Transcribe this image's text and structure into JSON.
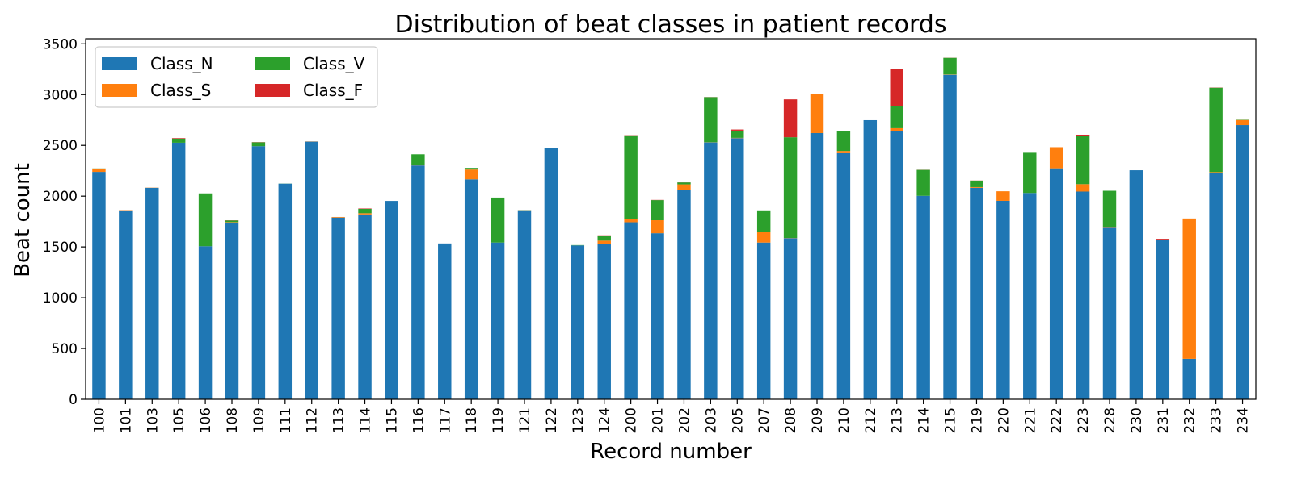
{
  "chart_data": {
    "type": "bar",
    "stacked": true,
    "title": "Distribution of beat classes in patient records",
    "xlabel": "Record number",
    "ylabel": "Beat count",
    "ylim": [
      0,
      3550
    ],
    "yticks": [
      0,
      500,
      1000,
      1500,
      2000,
      2500,
      3000,
      3500
    ],
    "grid": false,
    "legend_position": "top-left",
    "categories": [
      "100",
      "101",
      "103",
      "105",
      "106",
      "108",
      "109",
      "111",
      "112",
      "113",
      "114",
      "115",
      "116",
      "117",
      "118",
      "119",
      "121",
      "122",
      "123",
      "124",
      "200",
      "201",
      "202",
      "203",
      "205",
      "207",
      "208",
      "209",
      "210",
      "212",
      "213",
      "214",
      "215",
      "219",
      "220",
      "221",
      "222",
      "223",
      "228",
      "230",
      "231",
      "232",
      "233",
      "234"
    ],
    "series": [
      {
        "name": "Class_N",
        "color": "#1f77b4",
        "values": [
          2239,
          1860,
          2082,
          2526,
          1507,
          1740,
          2492,
          2123,
          2537,
          1789,
          1820,
          1953,
          2302,
          1534,
          2166,
          1543,
          1861,
          2476,
          1515,
          1531,
          1743,
          1635,
          2061,
          2529,
          2571,
          1543,
          1586,
          2621,
          2423,
          2748,
          2641,
          2003,
          3195,
          2082,
          1954,
          2031,
          2274,
          2045,
          1688,
          2255,
          1573,
          398,
          2230,
          2700
        ]
      },
      {
        "name": "Class_S",
        "color": "#ff7f0e",
        "values": [
          33,
          3,
          2,
          0,
          0,
          4,
          0,
          0,
          2,
          6,
          12,
          0,
          1,
          0,
          96,
          0,
          1,
          0,
          0,
          31,
          30,
          128,
          55,
          2,
          3,
          107,
          2,
          383,
          22,
          0,
          28,
          0,
          3,
          7,
          94,
          0,
          208,
          73,
          3,
          0,
          0,
          1382,
          7,
          50
        ]
      },
      {
        "name": "Class_V",
        "color": "#2ca02c",
        "values": [
          1,
          0,
          0,
          41,
          520,
          17,
          38,
          1,
          0,
          0,
          43,
          0,
          109,
          0,
          16,
          443,
          1,
          0,
          3,
          47,
          826,
          198,
          19,
          444,
          71,
          210,
          992,
          1,
          194,
          0,
          220,
          256,
          164,
          64,
          0,
          396,
          0,
          473,
          362,
          0,
          0,
          0,
          831,
          3
        ]
      },
      {
        "name": "Class_F",
        "color": "#d62728",
        "values": [
          0,
          0,
          0,
          5,
          0,
          2,
          2,
          0,
          0,
          0,
          4,
          0,
          0,
          0,
          0,
          0,
          0,
          0,
          0,
          5,
          2,
          2,
          1,
          1,
          11,
          0,
          373,
          0,
          2,
          0,
          362,
          1,
          1,
          1,
          0,
          0,
          0,
          14,
          0,
          0,
          7,
          0,
          2,
          0
        ]
      }
    ]
  }
}
